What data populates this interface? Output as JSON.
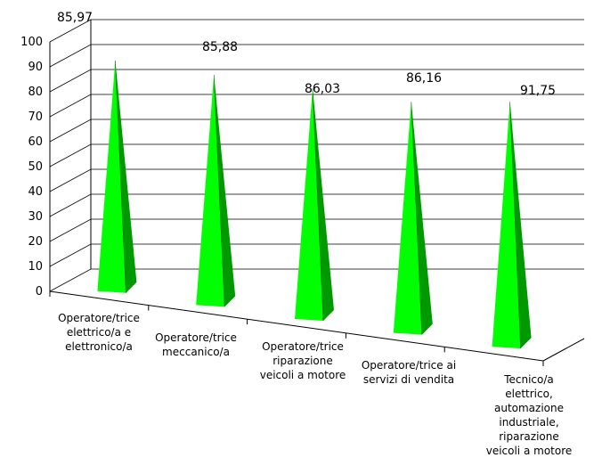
{
  "chart_data": {
    "type": "bar",
    "bar_shape": "pyramid",
    "three_d": true,
    "categories": [
      [
        "Operatore/trice",
        "elettrico/a e",
        "elettronico/a"
      ],
      [
        "Operatore/trice",
        "meccanico/a"
      ],
      [
        "Operatore/trice",
        "riparazione",
        "veicoli a motore"
      ],
      [
        "Operatore/trice ai",
        "servizi di vendita"
      ],
      [
        "Tecnico/a",
        "elettrico,",
        "automazione",
        "industriale,",
        "riparazione",
        "veicoli a motore"
      ]
    ],
    "values": [
      85.97,
      85.88,
      86.03,
      86.16,
      91.75
    ],
    "value_labels": [
      "85,97",
      "85,88",
      "86,03",
      "86,16",
      "91,75"
    ],
    "y_ticks": [
      "0",
      "10",
      "20",
      "30",
      "40",
      "50",
      "60",
      "70",
      "80",
      "90",
      "100"
    ],
    "ylim": [
      0,
      100
    ],
    "title": "",
    "xlabel": "",
    "ylabel": "",
    "grid": true,
    "legend": "none",
    "colors": {
      "bar_light": "#00ff00",
      "bar_dark": "#009900",
      "bar_darker": "#006600",
      "grid": "#000000"
    }
  }
}
